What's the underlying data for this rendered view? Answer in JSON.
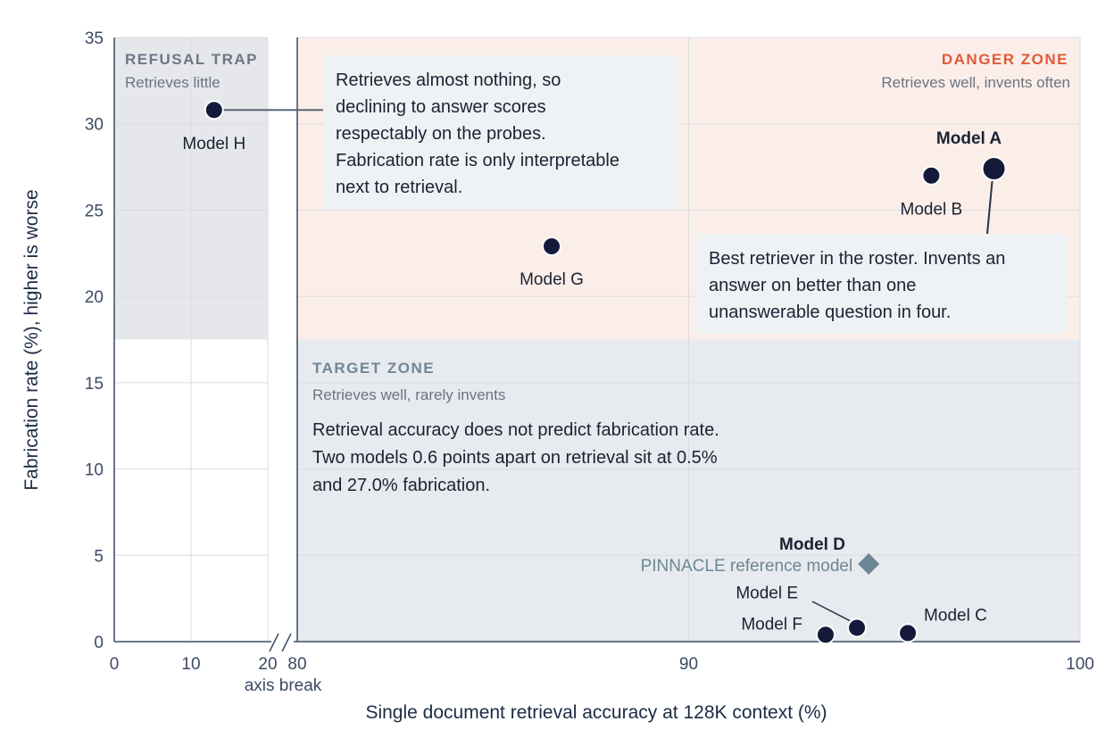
{
  "chart_data": {
    "type": "scatter",
    "xlabel": "Single document retrieval accuracy at 128K context (%)",
    "ylabel": "Fabrication rate (%), higher is worse",
    "x_axis_break_label": "axis break",
    "x_ranges": [
      [
        0,
        20
      ],
      [
        80,
        100
      ]
    ],
    "x_ticks_left": [
      0,
      10,
      20
    ],
    "x_ticks_right": [
      80,
      90,
      100
    ],
    "ylim": [
      0,
      35
    ],
    "y_ticks": [
      0,
      5,
      10,
      15,
      20,
      25,
      30,
      35
    ],
    "grid": true,
    "zones": {
      "refusal": {
        "title": "REFUSAL TRAP",
        "subtitle": "Retrieves little"
      },
      "danger": {
        "title": "DANGER ZONE",
        "subtitle": "Retrieves well, invents often"
      },
      "target": {
        "title": "TARGET ZONE",
        "subtitle": "Retrieves well, rarely invents"
      }
    },
    "points": [
      {
        "name": "Model H",
        "x": 13.0,
        "y": 30.8,
        "bold": false
      },
      {
        "name": "Model G",
        "x": 86.5,
        "y": 22.9,
        "bold": false
      },
      {
        "name": "Model B",
        "x": 96.2,
        "y": 27.0,
        "bold": false
      },
      {
        "name": "Model A",
        "x": 97.8,
        "y": 27.4,
        "bold": true
      },
      {
        "name": "Model F",
        "x": 93.5,
        "y": 0.4,
        "bold": false
      },
      {
        "name": "Model E",
        "x": 94.3,
        "y": 0.8,
        "bold": false
      },
      {
        "name": "Model C",
        "x": 95.6,
        "y": 0.5,
        "bold": false
      }
    ],
    "reference": {
      "label": "PINNACLE reference model",
      "x": 94.6,
      "y": 4.5
    },
    "highlight_label": "Model D",
    "annotations": {
      "model_h_note": [
        "Retrieves almost nothing, so",
        "declining to answer scores",
        "respectably on the probes.",
        "Fabrication rate is only interpretable",
        "next to retrieval."
      ],
      "model_a_note": [
        "Best retriever in the roster. Invents an",
        "answer on better than one",
        "unanswerable question in four."
      ],
      "target_note": [
        "Retrieval accuracy does not predict fabrication rate.",
        "Two models 0.6 points apart on retrieval sit at 0.5%",
        "and 27.0% fabrication."
      ]
    },
    "colors": {
      "point": "#151a3a",
      "reference": "#6b8796",
      "refusal_zone": "#e5e7ea",
      "danger_zone": "#fbeee8",
      "target_zone": "#e7eaee",
      "danger_title": "#e05a3a",
      "refusal_title": "#6d7786",
      "target_title": "#6f8797",
      "note_box": "#eef2f5"
    }
  }
}
